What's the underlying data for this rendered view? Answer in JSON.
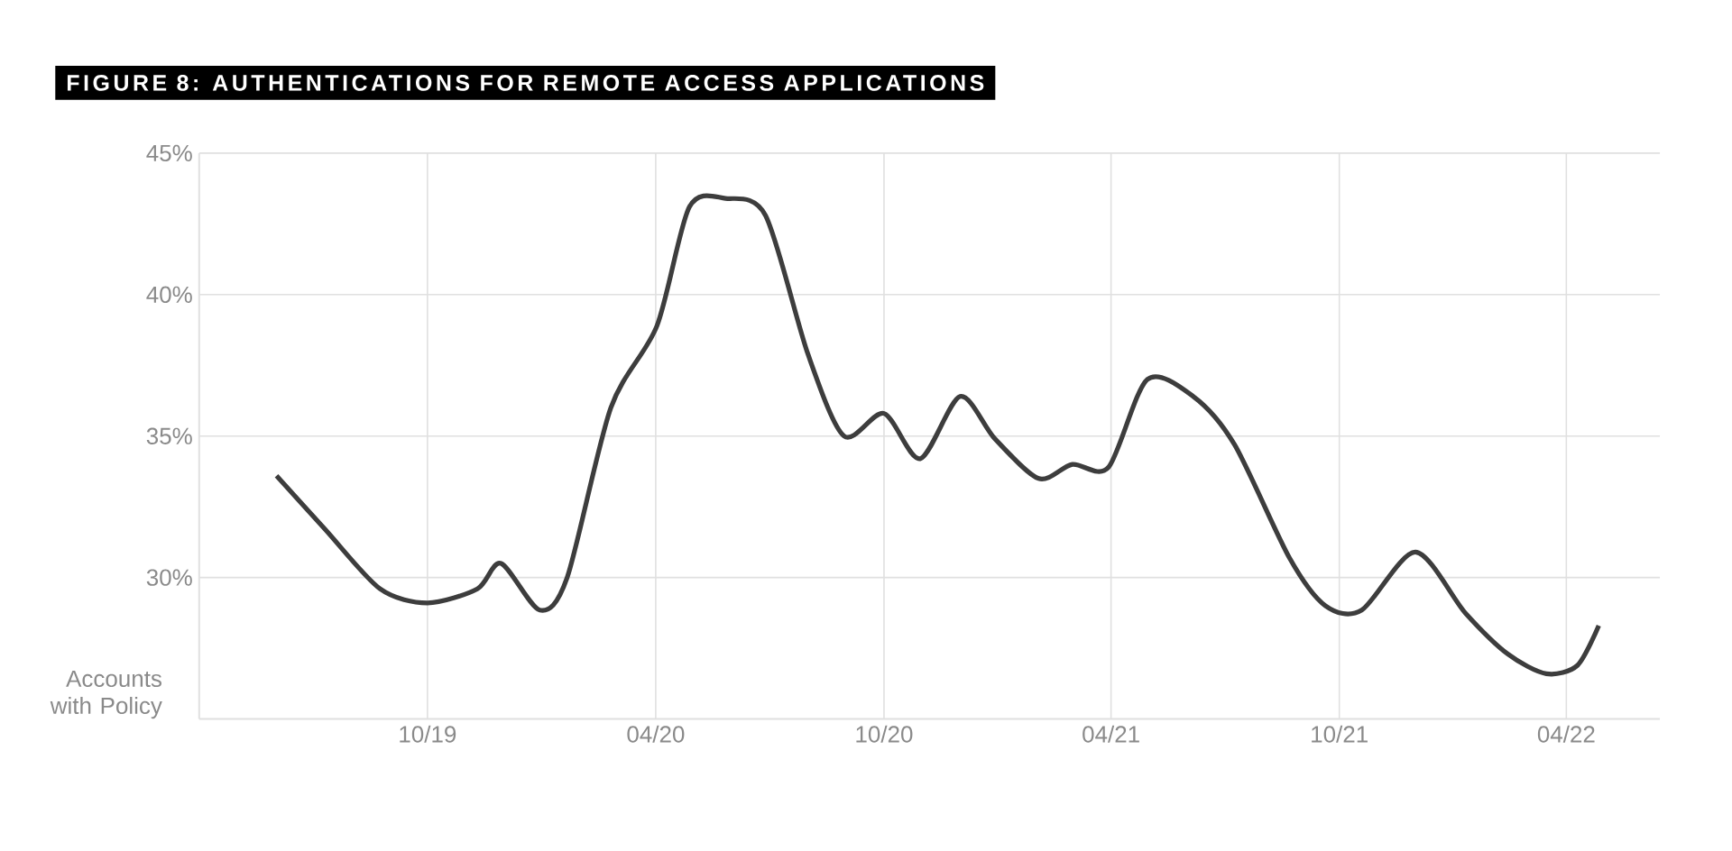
{
  "chart_data": {
    "type": "line",
    "title": "FIGURE 8: AUTHENTICATIONS FOR REMOTE ACCESS APPLICATIONS",
    "ylabel": "Accounts with Policy",
    "x": [
      "2019-06-02",
      "2019-07-11",
      "2019-08-24",
      "2019-10-01",
      "2019-11-10",
      "2019-11-29",
      "2019-12-30",
      "2020-01-21",
      "2020-02-25",
      "2020-04-02",
      "2020-04-28",
      "2020-05-27",
      "2020-06-28",
      "2020-08-01",
      "2020-08-30",
      "2020-10-01",
      "2020-10-30",
      "2020-12-01",
      "2020-12-29",
      "2021-02-02",
      "2021-03-01",
      "2021-03-30",
      "2021-04-30",
      "2021-06-06",
      "2021-07-09",
      "2021-08-22",
      "2021-09-20",
      "2021-10-19",
      "2021-12-01",
      "2022-01-10",
      "2022-02-13",
      "2022-03-16",
      "2022-04-10",
      "2022-04-27"
    ],
    "series": [
      {
        "color": "#3d3d3d",
        "values": [
          33.6,
          31.7,
          29.6,
          29.1,
          29.6,
          30.5,
          28.85,
          30.0,
          36.0,
          38.9,
          43.1,
          43.4,
          42.8,
          37.9,
          35.0,
          35.8,
          34.2,
          36.4,
          34.9,
          33.5,
          34.0,
          33.9,
          37.0,
          36.4,
          34.7,
          30.7,
          29.0,
          28.85,
          30.9,
          28.75,
          27.3,
          26.6,
          26.9,
          28.3
        ]
      }
    ],
    "xlim": [
      "2019-04-01",
      "2022-06-15"
    ],
    "xticks": [
      {
        "value": "2019-10",
        "label": "10/19"
      },
      {
        "value": "2020-04",
        "label": "04/20"
      },
      {
        "value": "2020-10",
        "label": "10/20"
      },
      {
        "value": "2021-04",
        "label": "04/21"
      },
      {
        "value": "2021-10",
        "label": "10/21"
      },
      {
        "value": "2022-04",
        "label": "04/22"
      }
    ],
    "ylim": [
      25,
      45
    ],
    "yticks": [
      {
        "value": 30,
        "label": "30%"
      },
      {
        "value": 35,
        "label": "35%"
      },
      {
        "value": 40,
        "label": "40%"
      },
      {
        "value": 45,
        "label": "45%"
      }
    ],
    "grid": true,
    "line_style": "solid",
    "marker": "none"
  }
}
